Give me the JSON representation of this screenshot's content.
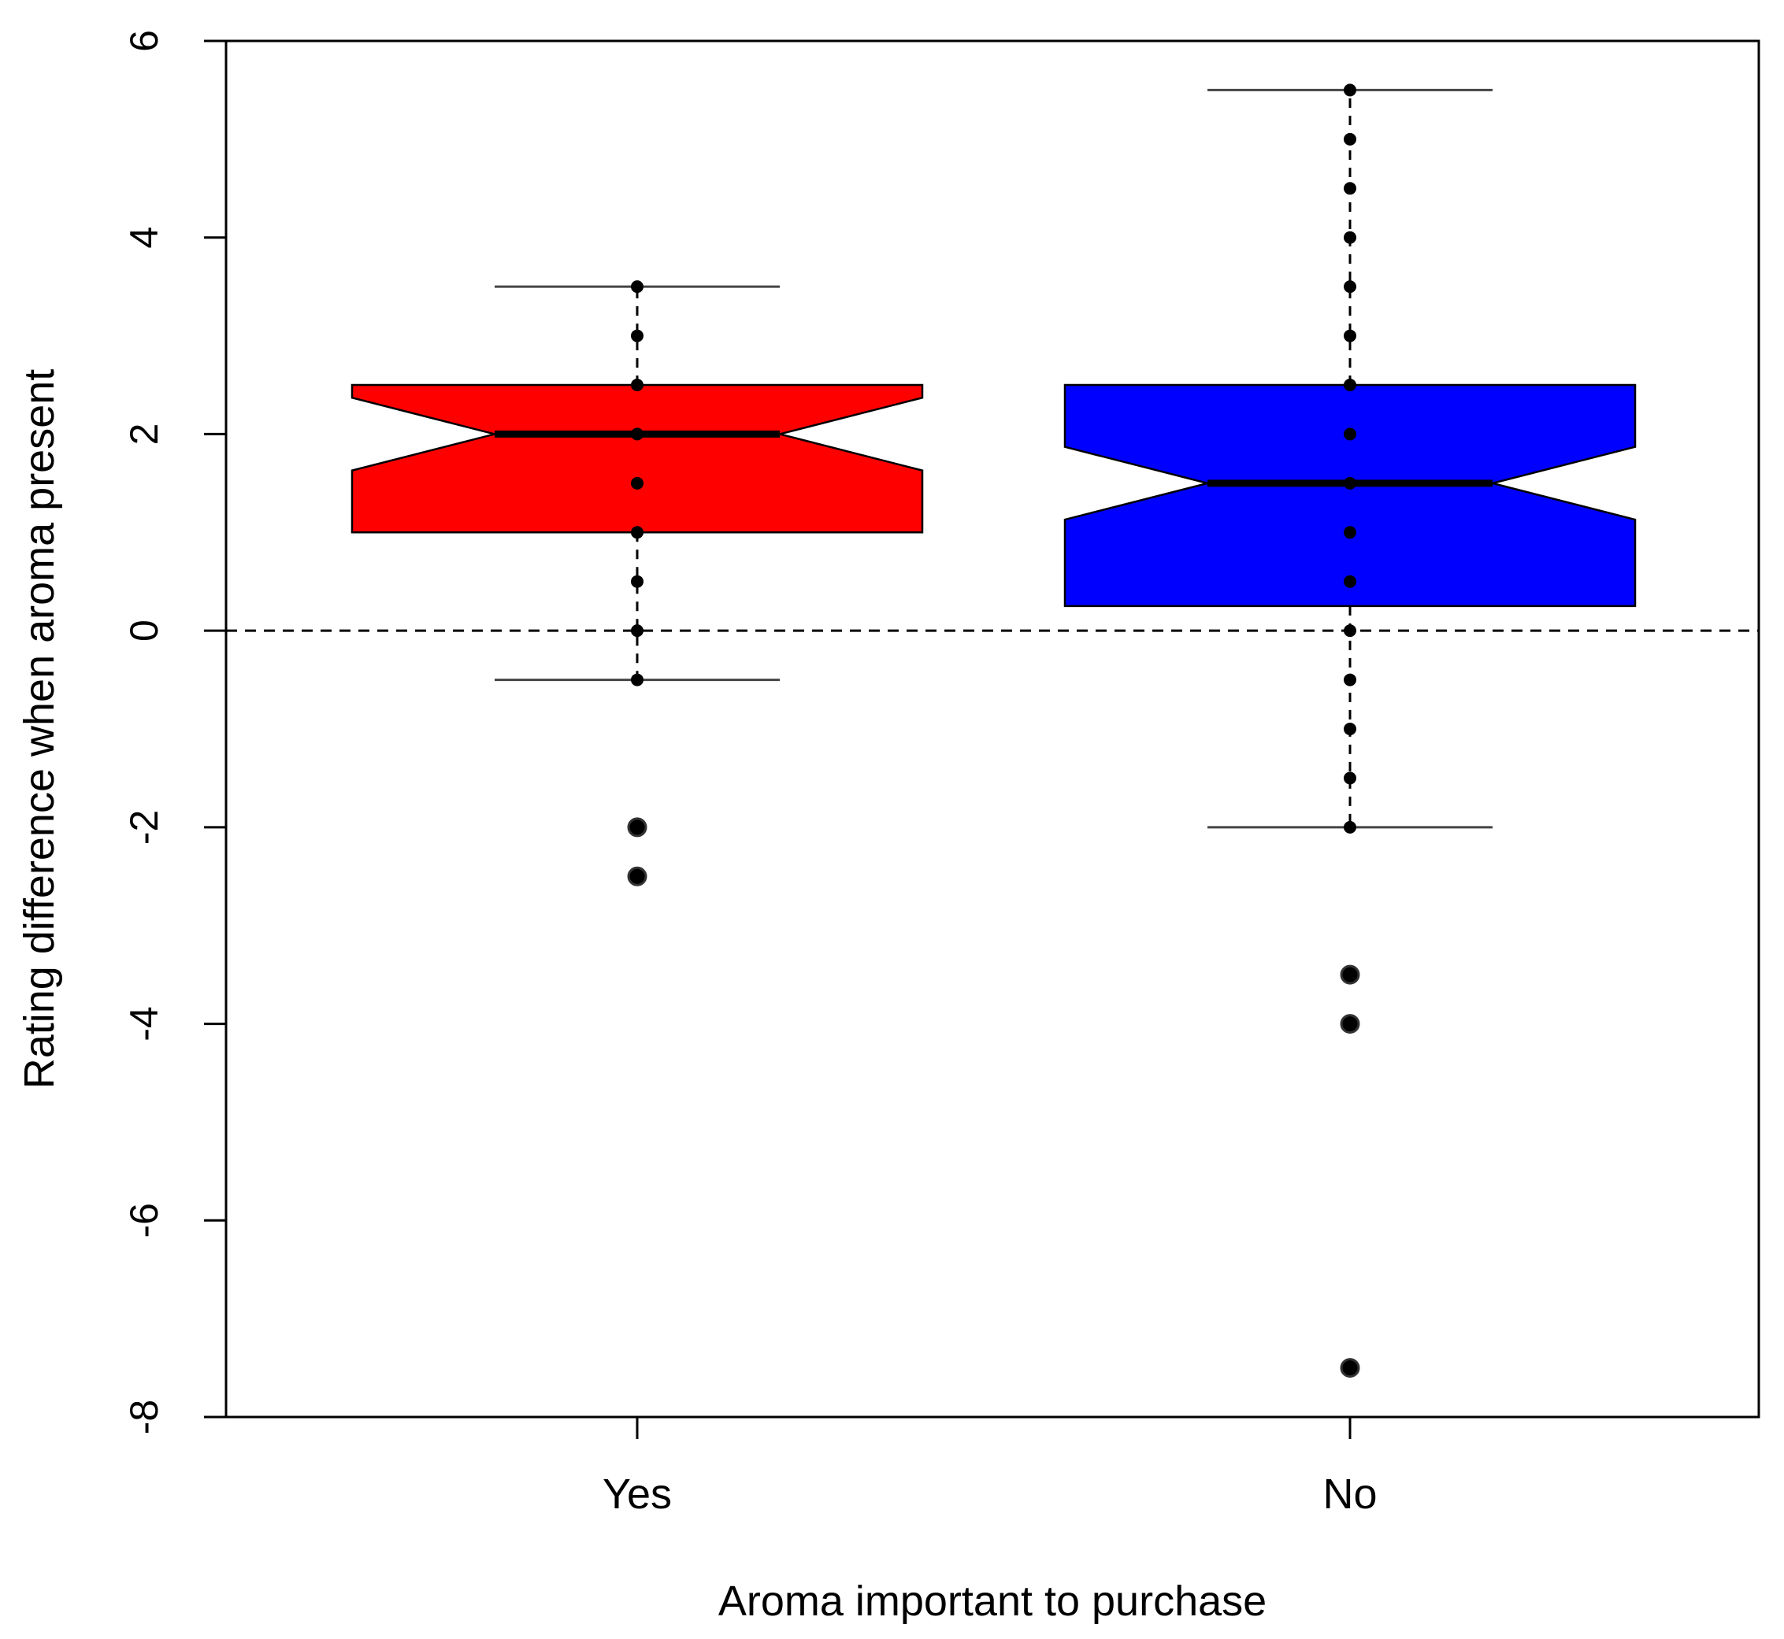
{
  "chart_data": {
    "type": "boxplot",
    "title": "",
    "xlabel": "Aroma important to purchase",
    "ylabel": "Rating difference when aroma present",
    "ylim": [
      -8,
      6
    ],
    "yticks": [
      -8,
      -6,
      -4,
      -2,
      0,
      2,
      4,
      6
    ],
    "reference_line": 0,
    "grid": false,
    "notched": true,
    "categories": [
      "Yes",
      "No"
    ],
    "groups": [
      {
        "category": "Yes",
        "color": "#ff0000",
        "whisker_low": -0.5,
        "q1": 1.0,
        "median": 2.0,
        "q3": 2.5,
        "whisker_high": 3.5,
        "notch_low": 1.63,
        "notch_high": 2.37,
        "outliers": [
          -2.0,
          -2.5
        ],
        "points": [
          3.5,
          3.0,
          2.5,
          2.0,
          1.5,
          1.0,
          0.5,
          0.0,
          -0.5
        ]
      },
      {
        "category": "No",
        "color": "#0000ff",
        "whisker_low": -2.0,
        "q1": 0.25,
        "median": 1.5,
        "q3": 2.5,
        "whisker_high": 5.5,
        "notch_low": 1.13,
        "notch_high": 1.87,
        "outliers": [
          -3.5,
          -4.0,
          -7.5
        ],
        "points": [
          5.5,
          5.0,
          4.5,
          4.0,
          3.5,
          3.0,
          2.5,
          2.0,
          1.5,
          1.0,
          0.5,
          0.0,
          -0.5,
          -1.0,
          -1.5,
          -2.0
        ]
      }
    ]
  }
}
